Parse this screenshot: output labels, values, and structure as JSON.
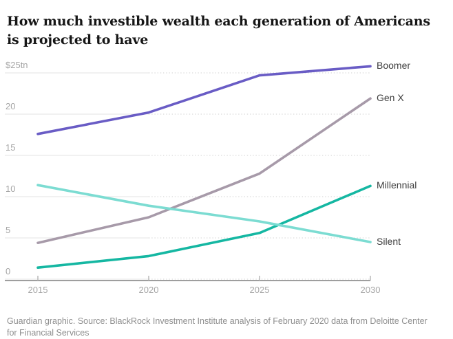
{
  "header": {
    "title": "How much investible wealth each generation of Americans is projected to have"
  },
  "footer": {
    "source": "Guardian graphic. Source: BlackRock Investment Institute analysis of February 2020 data from Deloitte Center for Financial Services"
  },
  "colors": {
    "boomer_line": "#695cc5",
    "genx_line": "#a79aa9",
    "millennial_line": "#15b7a2",
    "silent_line": "#7cdcd2",
    "grid_solid": "#e3e3e3",
    "grid_dotted": "#d9d9d9",
    "axis": "#9e9e9e",
    "tick_label": "#a6a6a6",
    "series_label": "#3d3d3d"
  },
  "chart_data": {
    "type": "line",
    "x": [
      2015,
      2020,
      2025,
      2030
    ],
    "x_tick_labels": [
      "2015",
      "2020",
      "2025",
      "2030"
    ],
    "xlim": [
      2015,
      2030
    ],
    "y_ticks": [
      0,
      5,
      10,
      15,
      20,
      25
    ],
    "y_tick_labels": [
      "0",
      "5",
      "10",
      "15",
      "20",
      "$25tn"
    ],
    "ylim": [
      0,
      25
    ],
    "value_unit": "$tn",
    "grid": {
      "horizontal": true,
      "solid_until_x": 2020,
      "dotted_after_x": 2020
    },
    "legend_position": "labels-at-line-ends-right",
    "series": [
      {
        "name": "Boomer",
        "color": "#695cc5",
        "values": [
          17.6,
          20.2,
          24.7,
          25.8
        ]
      },
      {
        "name": "Gen X",
        "color": "#a79aa9",
        "values": [
          4.4,
          7.5,
          12.8,
          21.9
        ]
      },
      {
        "name": "Millennial",
        "color": "#15b7a2",
        "values": [
          1.4,
          2.8,
          5.6,
          11.3
        ]
      },
      {
        "name": "Silent",
        "color": "#7cdcd2",
        "values": [
          11.4,
          8.9,
          7.0,
          4.5
        ]
      }
    ]
  }
}
